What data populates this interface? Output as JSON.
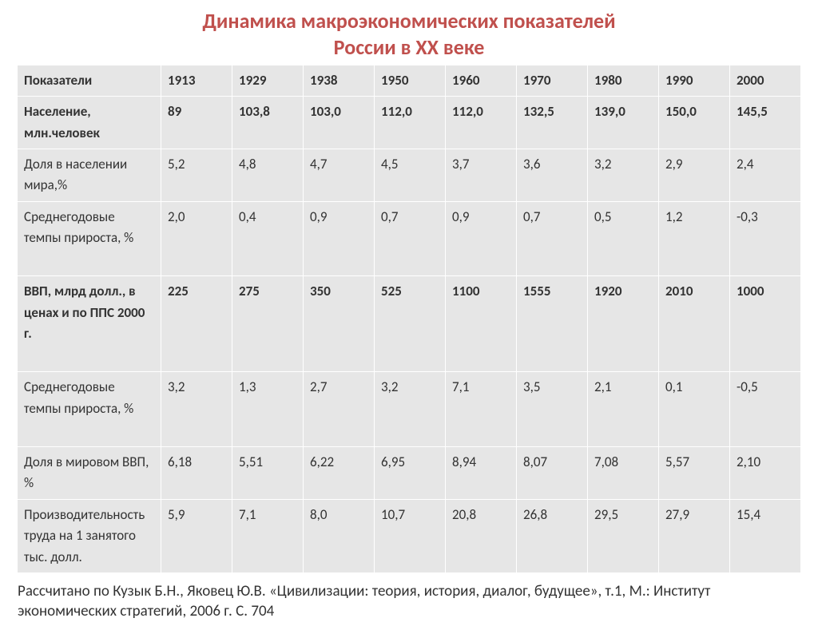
{
  "title_line1": "Динамика макроэкономических показателей",
  "title_line2": "России в ХХ веке",
  "table": {
    "header_indicator": "Показатели",
    "years": [
      "1913",
      "1929",
      "1938",
      "1950",
      "1960",
      "1970",
      "1980",
      "1990",
      "2000"
    ],
    "rows": [
      {
        "label": "Население, млн.человек",
        "bold": true,
        "tall": false,
        "cells": [
          "89",
          "103,8",
          "103,0",
          "112,0",
          "112,0",
          "132,5",
          "139,0",
          "150,0",
          "145,5"
        ]
      },
      {
        "label": "Доля в населении мира,%",
        "bold": false,
        "tall": false,
        "cells": [
          "5,2",
          "4,8",
          "4,7",
          "4,5",
          "3,7",
          "3,6",
          "3,2",
          "2,9",
          "2,4"
        ]
      },
      {
        "label": "Среднегодовые темпы прироста, %",
        "bold": false,
        "tall": true,
        "cells": [
          "2,0",
          "0,4",
          "0,9",
          "0,7",
          "0,9",
          "0,7",
          "0,5",
          "1,2",
          "-0,3"
        ]
      },
      {
        "label": "ВВП, млрд долл., в ценах и по ППС 2000 г.",
        "bold": true,
        "tall": true,
        "cells": [
          "225",
          "275",
          "350",
          "525",
          "1100",
          "1555",
          "1920",
          "2010",
          "1000"
        ]
      },
      {
        "label": "Среднегодовые темпы прироста, %",
        "bold": false,
        "tall": true,
        "cells": [
          "3,2",
          "1,3",
          "2,7",
          "3,2",
          "7,1",
          "3,5",
          "2,1",
          "0,1",
          "-0,5"
        ]
      },
      {
        "label": "Доля в мировом ВВП, %",
        "bold": false,
        "tall": false,
        "cells": [
          "6,18",
          "5,51",
          "6,22",
          "6,95",
          "8,94",
          "8,07",
          "7,08",
          "5,57",
          "2,10"
        ]
      },
      {
        "label": "Производительность труда на 1 занятого тыс. долл.",
        "bold": false,
        "tall": false,
        "cells": [
          "5,9",
          "7,1",
          "8,0",
          "10,7",
          "20,8",
          "26,8",
          "29,5",
          "27,9",
          "15,4"
        ]
      }
    ]
  },
  "footnote": "Рассчитано по Кузык Б.Н., Яковец Ю.В. «Цивилизации: теория, история, диалог, будущее», т.1, М.: Институт экономических стратегий, 2006 г. С. 704",
  "colors": {
    "title": "#c0504d",
    "cell_bg": "#e6e6e6",
    "border": "#ffffff",
    "text": "#333333"
  },
  "fontsizes": {
    "title": 26,
    "cell": 17,
    "footnote": 19
  }
}
